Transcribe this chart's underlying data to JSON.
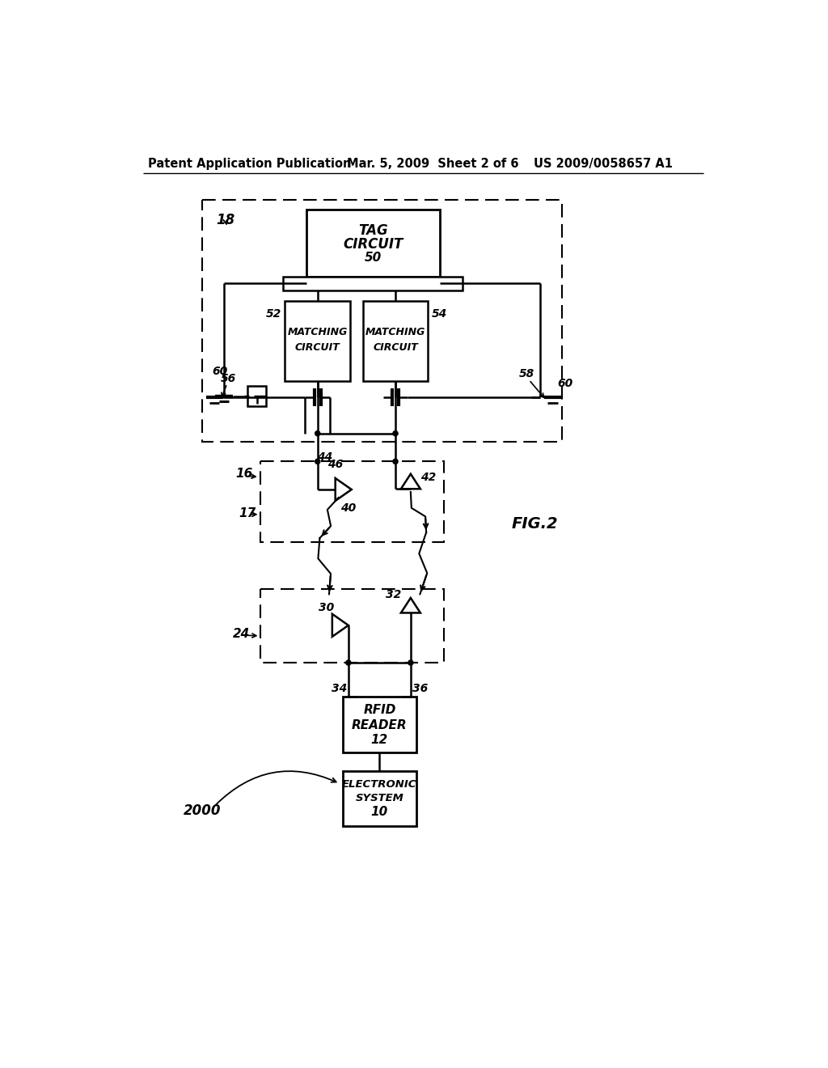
{
  "bg_color": "#ffffff",
  "line_color": "#000000",
  "header_text": "Patent Application Publication",
  "header_date": "Mar. 5, 2009  Sheet 2 of 6",
  "header_patent": "US 2009/0058657 A1",
  "fig_label": "FIG.2"
}
